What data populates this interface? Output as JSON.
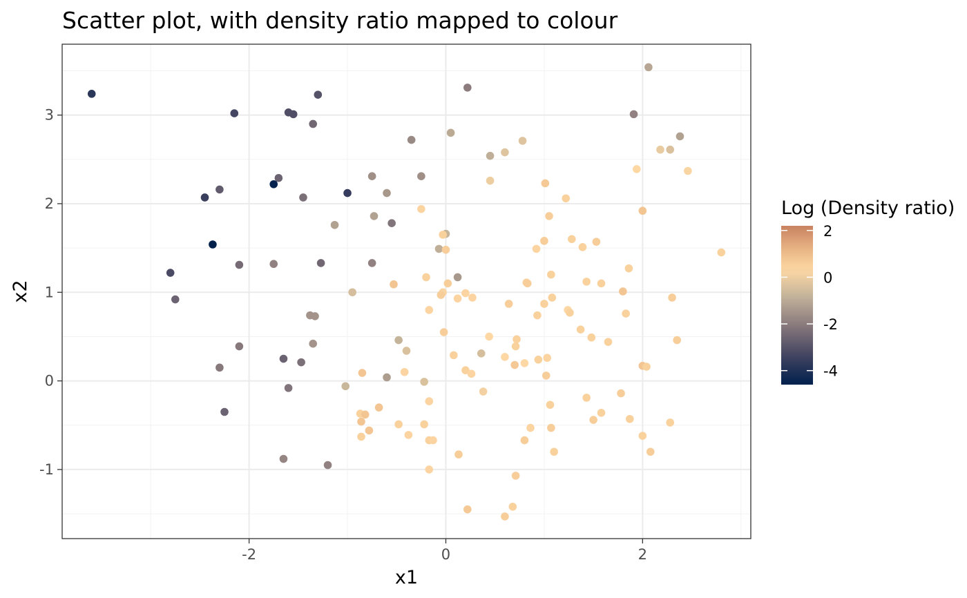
{
  "chart_data": {
    "type": "scatter",
    "title": "Scatter plot, with density ratio mapped to colour",
    "xlabel": "x1",
    "ylabel": "x2",
    "xlim": [
      -3.9,
      3.1
    ],
    "ylim": [
      -1.78,
      3.8
    ],
    "xticks": [
      -2,
      0,
      2
    ],
    "yticks": [
      -1,
      0,
      1,
      2,
      3
    ],
    "grid": true,
    "legend": {
      "title": "Log (Density ratio)",
      "position": "right",
      "limits": [
        -4.6,
        2.2
      ],
      "breaks": [
        2,
        0,
        -2,
        -4
      ]
    },
    "points": [
      {
        "x": -3.6,
        "y": 3.24,
        "c": -3.8
      },
      {
        "x": -2.15,
        "y": 3.02,
        "c": -3.3
      },
      {
        "x": -1.6,
        "y": 3.03,
        "c": -3.1
      },
      {
        "x": -1.55,
        "y": 3.01,
        "c": -3.1
      },
      {
        "x": -1.3,
        "y": 3.23,
        "c": -3.0
      },
      {
        "x": -1.35,
        "y": 2.9,
        "c": -2.5
      },
      {
        "x": -1.7,
        "y": 2.29,
        "c": -2.6
      },
      {
        "x": -1.75,
        "y": 2.22,
        "c": -4.5
      },
      {
        "x": -1.0,
        "y": 2.12,
        "c": -3.6
      },
      {
        "x": -2.3,
        "y": 2.16,
        "c": -2.8
      },
      {
        "x": -2.45,
        "y": 2.07,
        "c": -3.5
      },
      {
        "x": -1.45,
        "y": 2.07,
        "c": -2.3
      },
      {
        "x": -2.37,
        "y": 1.54,
        "c": -4.6
      },
      {
        "x": -2.8,
        "y": 1.22,
        "c": -3.2
      },
      {
        "x": -2.75,
        "y": 0.92,
        "c": -2.6
      },
      {
        "x": -2.1,
        "y": 1.31,
        "c": -2.4
      },
      {
        "x": -1.75,
        "y": 1.32,
        "c": -1.9
      },
      {
        "x": -1.27,
        "y": 1.33,
        "c": -2.5
      },
      {
        "x": -0.75,
        "y": 1.33,
        "c": -1.9
      },
      {
        "x": -2.1,
        "y": 0.39,
        "c": -2.1
      },
      {
        "x": -2.3,
        "y": 0.15,
        "c": -2.1
      },
      {
        "x": -2.25,
        "y": -0.35,
        "c": -2.6
      },
      {
        "x": -1.65,
        "y": 0.25,
        "c": -2.6
      },
      {
        "x": -1.47,
        "y": 0.21,
        "c": -2.3
      },
      {
        "x": -1.6,
        "y": -0.08,
        "c": -2.2
      },
      {
        "x": -1.38,
        "y": 0.74,
        "c": -1.5
      },
      {
        "x": -1.33,
        "y": 0.73,
        "c": -1.5
      },
      {
        "x": -1.35,
        "y": 0.42,
        "c": -1.5
      },
      {
        "x": -1.65,
        "y": -0.88,
        "c": -1.8
      },
      {
        "x": -1.2,
        "y": -0.95,
        "c": -1.9
      },
      {
        "x": -0.35,
        "y": 2.72,
        "c": -1.7
      },
      {
        "x": -0.75,
        "y": 2.31,
        "c": -1.6
      },
      {
        "x": -0.25,
        "y": 2.31,
        "c": -1.6
      },
      {
        "x": -0.6,
        "y": 2.12,
        "c": -1.4
      },
      {
        "x": -0.73,
        "y": 1.86,
        "c": -1.2
      },
      {
        "x": -1.13,
        "y": 1.76,
        "c": -1.2
      },
      {
        "x": -0.55,
        "y": 1.78,
        "c": -2.2
      },
      {
        "x": -0.25,
        "y": 1.94,
        "c": 0.4
      },
      {
        "x": 0.05,
        "y": 2.8,
        "c": -1.0
      },
      {
        "x": 0.22,
        "y": 3.31,
        "c": -2.0
      },
      {
        "x": 0.45,
        "y": 2.54,
        "c": -0.9
      },
      {
        "x": 0.6,
        "y": 2.58,
        "c": -0.3
      },
      {
        "x": 0.78,
        "y": 2.71,
        "c": -0.3
      },
      {
        "x": 0.45,
        "y": 2.26,
        "c": 0.0
      },
      {
        "x": 0.0,
        "y": 1.66,
        "c": -0.8
      },
      {
        "x": -0.03,
        "y": 1.65,
        "c": 0.5
      },
      {
        "x": -0.07,
        "y": 1.49,
        "c": -0.9
      },
      {
        "x": 0.0,
        "y": 1.48,
        "c": 0.6
      },
      {
        "x": -0.95,
        "y": 1.0,
        "c": -0.5
      },
      {
        "x": -0.53,
        "y": 1.09,
        "c": 0.8
      },
      {
        "x": -0.2,
        "y": 1.17,
        "c": 0.5
      },
      {
        "x": 0.12,
        "y": 1.17,
        "c": -1.4
      },
      {
        "x": 0.02,
        "y": 1.1,
        "c": 0.6
      },
      {
        "x": -0.03,
        "y": 1.0,
        "c": 0.2
      },
      {
        "x": -0.05,
        "y": 0.97,
        "c": 0.6
      },
      {
        "x": 0.2,
        "y": 0.99,
        "c": 0.4
      },
      {
        "x": 0.12,
        "y": 0.93,
        "c": 0.4
      },
      {
        "x": 0.27,
        "y": 0.94,
        "c": 0.4
      },
      {
        "x": -0.17,
        "y": 0.8,
        "c": 0.4
      },
      {
        "x": -0.02,
        "y": 0.55,
        "c": 0.6
      },
      {
        "x": -0.48,
        "y": 0.46,
        "c": -0.8
      },
      {
        "x": -0.4,
        "y": 0.34,
        "c": -0.4
      },
      {
        "x": -0.6,
        "y": 0.04,
        "c": -1.3
      },
      {
        "x": -0.42,
        "y": 0.1,
        "c": 0.4
      },
      {
        "x": -0.22,
        "y": -0.01,
        "c": -0.4
      },
      {
        "x": -0.85,
        "y": 0.09,
        "c": 0.8
      },
      {
        "x": -1.02,
        "y": -0.06,
        "c": -0.7
      },
      {
        "x": 0.08,
        "y": 0.29,
        "c": 0.5
      },
      {
        "x": 0.36,
        "y": 0.31,
        "c": -0.5
      },
      {
        "x": 0.2,
        "y": 0.12,
        "c": 0.5
      },
      {
        "x": 0.26,
        "y": 0.08,
        "c": 0.4
      },
      {
        "x": -0.17,
        "y": -0.23,
        "c": 0.4
      },
      {
        "x": -0.68,
        "y": -0.3,
        "c": 0.8
      },
      {
        "x": -0.87,
        "y": -0.37,
        "c": 0.5
      },
      {
        "x": -0.82,
        "y": -0.38,
        "c": 0.8
      },
      {
        "x": -0.86,
        "y": -0.46,
        "c": 0.8
      },
      {
        "x": -0.48,
        "y": -0.49,
        "c": 0.5
      },
      {
        "x": -0.22,
        "y": -0.49,
        "c": 0.5
      },
      {
        "x": -0.78,
        "y": -0.56,
        "c": 0.8
      },
      {
        "x": -0.38,
        "y": -0.61,
        "c": 0.4
      },
      {
        "x": -0.86,
        "y": -0.63,
        "c": 0.5
      },
      {
        "x": -0.17,
        "y": -0.67,
        "c": 0.5
      },
      {
        "x": -0.13,
        "y": -0.67,
        "c": 0.4
      },
      {
        "x": 0.13,
        "y": -0.83,
        "c": 0.6
      },
      {
        "x": -0.17,
        "y": -1.0,
        "c": 0.4
      },
      {
        "x": 0.38,
        "y": -0.12,
        "c": 0.1
      },
      {
        "x": 0.22,
        "y": -1.45,
        "c": 0.7
      },
      {
        "x": 0.6,
        "y": -1.53,
        "c": 0.6
      },
      {
        "x": 0.68,
        "y": -1.42,
        "c": 0.5
      },
      {
        "x": 0.71,
        "y": -1.07,
        "c": 0.6
      },
      {
        "x": 0.8,
        "y": -0.67,
        "c": 0.6
      },
      {
        "x": 0.86,
        "y": -0.53,
        "c": 0.4
      },
      {
        "x": 1.07,
        "y": -0.53,
        "c": 0.6
      },
      {
        "x": 1.1,
        "y": -0.8,
        "c": 0.5
      },
      {
        "x": 1.06,
        "y": -0.27,
        "c": 0.5
      },
      {
        "x": 1.43,
        "y": -0.19,
        "c": 0.5
      },
      {
        "x": 1.5,
        "y": -0.44,
        "c": 0.6
      },
      {
        "x": 1.58,
        "y": -0.36,
        "c": 0.5
      },
      {
        "x": 1.78,
        "y": -0.14,
        "c": 0.6
      },
      {
        "x": 1.87,
        "y": -0.43,
        "c": 0.5
      },
      {
        "x": 2.0,
        "y": -0.62,
        "c": 0.5
      },
      {
        "x": 2.08,
        "y": -0.8,
        "c": 0.6
      },
      {
        "x": 2.28,
        "y": -0.47,
        "c": 0.5
      },
      {
        "x": 2.0,
        "y": 0.17,
        "c": 0.8
      },
      {
        "x": 2.04,
        "y": 0.16,
        "c": 0.5
      },
      {
        "x": 2.35,
        "y": 0.46,
        "c": 0.6
      },
      {
        "x": 2.3,
        "y": 0.94,
        "c": 0.6
      },
      {
        "x": 1.8,
        "y": 1.01,
        "c": 0.8
      },
      {
        "x": 1.83,
        "y": 0.76,
        "c": 0.5
      },
      {
        "x": 1.65,
        "y": 0.44,
        "c": 0.5
      },
      {
        "x": 1.48,
        "y": 0.49,
        "c": 0.5
      },
      {
        "x": 1.37,
        "y": 0.58,
        "c": 0.5
      },
      {
        "x": 1.24,
        "y": 0.8,
        "c": 0.3
      },
      {
        "x": 1.26,
        "y": 0.77,
        "c": 0.5
      },
      {
        "x": 1.08,
        "y": 0.94,
        "c": 0.5
      },
      {
        "x": 1.0,
        "y": 0.87,
        "c": 0.5
      },
      {
        "x": 0.93,
        "y": 0.74,
        "c": 0.5
      },
      {
        "x": 0.64,
        "y": 0.87,
        "c": 0.6
      },
      {
        "x": 0.82,
        "y": 1.11,
        "c": 0.5
      },
      {
        "x": 0.83,
        "y": 1.1,
        "c": 0.6
      },
      {
        "x": 1.07,
        "y": 1.2,
        "c": 0.5
      },
      {
        "x": 1.43,
        "y": 1.12,
        "c": 0.5
      },
      {
        "x": 1.58,
        "y": 1.1,
        "c": 0.5
      },
      {
        "x": 1.86,
        "y": 1.27,
        "c": 0.5
      },
      {
        "x": 1.0,
        "y": 1.58,
        "c": 0.6
      },
      {
        "x": 0.92,
        "y": 1.49,
        "c": 0.4
      },
      {
        "x": 1.28,
        "y": 1.6,
        "c": 0.5
      },
      {
        "x": 1.39,
        "y": 1.51,
        "c": 0.5
      },
      {
        "x": 1.53,
        "y": 1.57,
        "c": 0.6
      },
      {
        "x": 1.05,
        "y": 1.86,
        "c": 0.6
      },
      {
        "x": 1.22,
        "y": 2.06,
        "c": 0.5
      },
      {
        "x": 1.01,
        "y": 2.23,
        "c": 0.7
      },
      {
        "x": 2.0,
        "y": 1.92,
        "c": 0.8
      },
      {
        "x": 1.94,
        "y": 2.39,
        "c": 0.3
      },
      {
        "x": 2.18,
        "y": 2.61,
        "c": -0.1
      },
      {
        "x": 2.28,
        "y": 2.61,
        "c": -0.4
      },
      {
        "x": 2.38,
        "y": 2.76,
        "c": -1.2
      },
      {
        "x": 2.46,
        "y": 2.37,
        "c": 0.2
      },
      {
        "x": 2.06,
        "y": 3.54,
        "c": -1.1
      },
      {
        "x": 1.91,
        "y": 3.01,
        "c": -1.9
      },
      {
        "x": 2.8,
        "y": 1.45,
        "c": 0.5
      },
      {
        "x": 0.72,
        "y": 0.47,
        "c": 0.5
      },
      {
        "x": 0.71,
        "y": 0.39,
        "c": 0.5
      },
      {
        "x": 0.44,
        "y": 0.5,
        "c": 0.3
      },
      {
        "x": 0.6,
        "y": 0.27,
        "c": 0.3
      },
      {
        "x": 0.8,
        "y": 0.2,
        "c": 0.3
      },
      {
        "x": 0.94,
        "y": 0.24,
        "c": 0.5
      },
      {
        "x": 1.03,
        "y": 0.26,
        "c": 0.4
      },
      {
        "x": 0.7,
        "y": 0.18,
        "c": 0.7
      },
      {
        "x": 1.02,
        "y": 0.06,
        "c": 0.6
      }
    ]
  }
}
